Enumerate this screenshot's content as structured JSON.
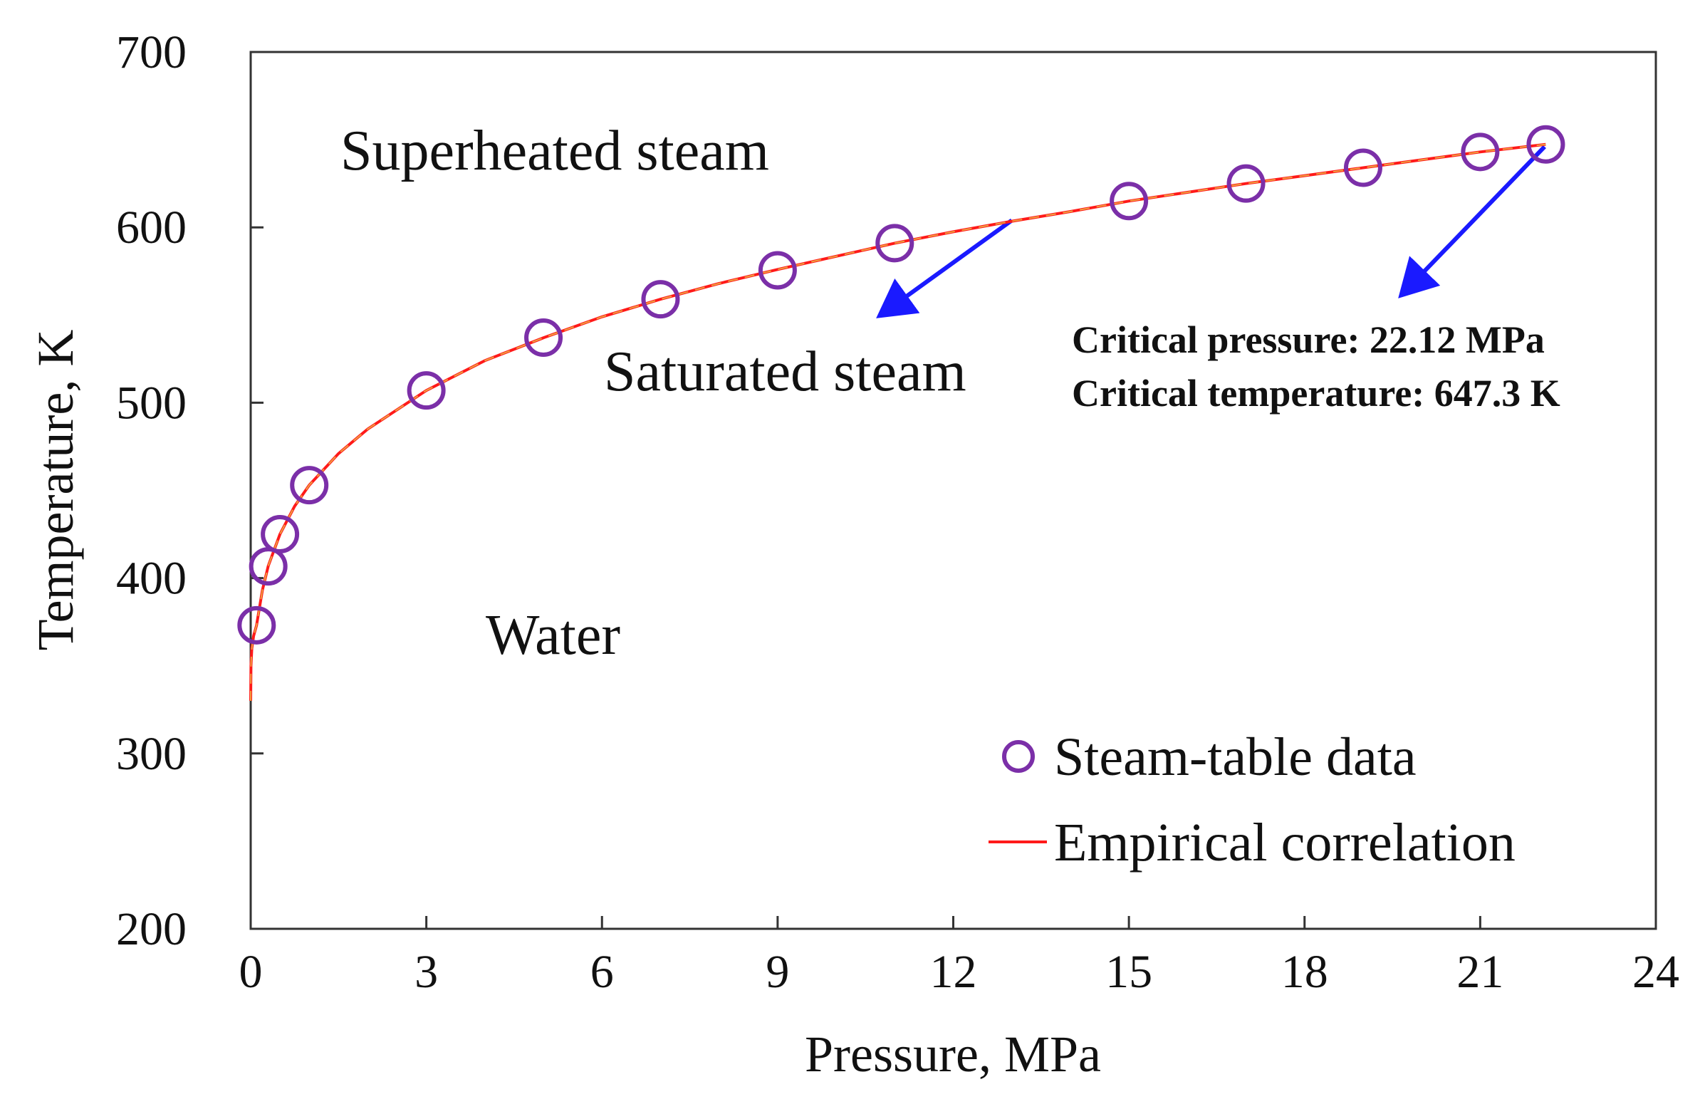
{
  "chart_data": {
    "type": "line",
    "xlabel": "Pressure, MPa",
    "ylabel": "Temperature, K",
    "xlim": [
      0,
      24
    ],
    "ylim": [
      200,
      700
    ],
    "xticks": [
      0,
      3,
      6,
      9,
      12,
      15,
      18,
      21,
      24
    ],
    "yticks": [
      200,
      300,
      400,
      500,
      600,
      700
    ],
    "grid": false,
    "legend_position": "bottom-right",
    "series": [
      {
        "name": "Steam-table data",
        "kind": "scatter",
        "marker": "open-circle",
        "color": "#7b2fa8",
        "x": [
          0.101,
          0.3,
          0.5,
          1.0,
          3.0,
          5.0,
          7.0,
          9.0,
          11.0,
          15.0,
          17.0,
          19.0,
          21.0,
          22.12
        ],
        "y": [
          373.1,
          406.7,
          425.0,
          453.0,
          507.0,
          537.1,
          559.0,
          575.5,
          591.0,
          615.0,
          625.0,
          634.0,
          643.0,
          647.3
        ]
      },
      {
        "name": "Empirical correlation",
        "kind": "line",
        "color": "#ff1a1a",
        "x": [
          0.0,
          0.005,
          0.02,
          0.05,
          0.1,
          0.2,
          0.3,
          0.5,
          0.75,
          1.0,
          1.5,
          2.0,
          3.0,
          4.0,
          5.0,
          6.0,
          7.0,
          8.0,
          9.0,
          10.0,
          11.0,
          12.0,
          13.0,
          14.0,
          15.0,
          16.0,
          17.0,
          18.0,
          19.0,
          20.0,
          21.0,
          22.12
        ],
        "y": [
          330.0,
          350.0,
          360.0,
          367.0,
          373.0,
          393.0,
          407.0,
          425.0,
          441.0,
          453.0,
          471.0,
          485.0,
          507.0,
          524.0,
          537.0,
          549.0,
          559.0,
          568.0,
          576.0,
          583.5,
          591.0,
          597.5,
          603.5,
          609.0,
          615.0,
          620.0,
          625.0,
          629.5,
          634.0,
          638.5,
          643.0,
          647.3
        ]
      }
    ],
    "annotations": {
      "superheated": "Superheated steam",
      "saturated": "Saturated steam",
      "water": "Water",
      "critical_pressure": "Critical pressure: 22.12 MPa",
      "critical_temperature": "Critical temperature: 647.3 K"
    },
    "arrows": [
      {
        "name": "saturated-arrow",
        "from": [
          13.0,
          604.0
        ],
        "to": [
          10.8,
          551.0
        ],
        "color": "#1a1aff"
      },
      {
        "name": "critical-arrow",
        "from": [
          22.1,
          646.0
        ],
        "to": [
          19.7,
          563.0
        ],
        "color": "#1a1aff"
      }
    ]
  }
}
